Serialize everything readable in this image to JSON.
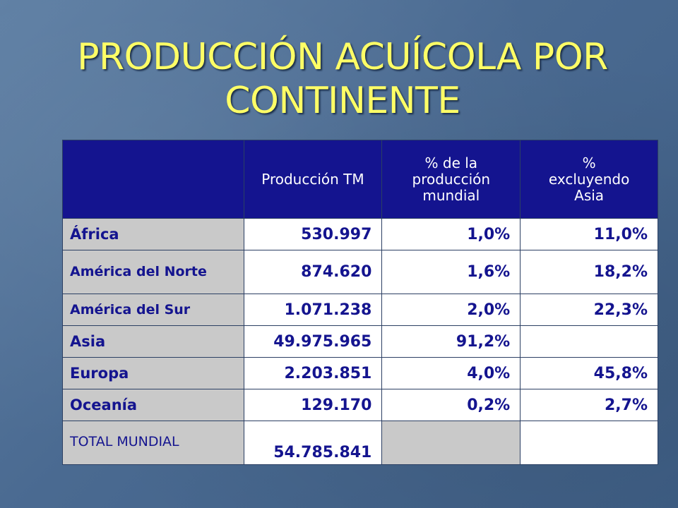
{
  "title": "PRODUCCIÓN ACUÍCOLA POR CONTINENTE",
  "table": {
    "headers": [
      "",
      "Producción TM",
      "% de la producción mundial",
      "% excluyendo Asia"
    ],
    "rows": [
      {
        "region": "África",
        "produccion": "530.997",
        "pct_mundial": "1,0%",
        "pct_excl_asia": "11,0%"
      },
      {
        "region": "América del Norte",
        "produccion": "874.620",
        "pct_mundial": "1,6%",
        "pct_excl_asia": "18,2%"
      },
      {
        "region": "América del Sur",
        "produccion": "1.071.238",
        "pct_mundial": "2,0%",
        "pct_excl_asia": "22,3%"
      },
      {
        "region": "Asia",
        "produccion": "49.975.965",
        "pct_mundial": "91,2%",
        "pct_excl_asia": ""
      },
      {
        "region": "Europa",
        "produccion": "2.203.851",
        "pct_mundial": "4,0%",
        "pct_excl_asia": "45,8%"
      },
      {
        "region": "Oceanía",
        "produccion": "129.170",
        "pct_mundial": "0,2%",
        "pct_excl_asia": "2,7%"
      },
      {
        "region": "TOTAL MUNDIAL",
        "produccion": "54.785.841",
        "pct_mundial": "",
        "pct_excl_asia": ""
      }
    ]
  },
  "colors": {
    "background": "#4a6a91",
    "title": "#ffff66",
    "header_bg": "#14148f",
    "header_text": "#ffffff",
    "label_bg": "#c9c9c9",
    "value_bg": "#ffffff",
    "value_text": "#14148f"
  }
}
